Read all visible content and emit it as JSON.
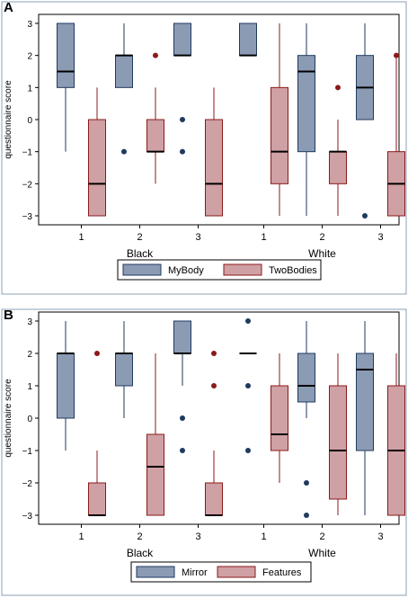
{
  "panel_letters": [
    "A",
    "B"
  ],
  "colors": {
    "box1_fill": "#8c9bb4",
    "box1_line": "#1f3a5f",
    "box2_fill": "#cfa0a4",
    "box2_line": "#8b1a1a",
    "frame": "#8aa0b4"
  },
  "chart_data": [
    {
      "type": "box",
      "ylabel": "questionnaire score",
      "ylim": [
        -3,
        3
      ],
      "yticks": [
        "3",
        "2",
        "1",
        "0",
        "−1",
        "−2",
        "−3"
      ],
      "group_labels": [
        "Black",
        "White"
      ],
      "categories": [
        "1",
        "2",
        "3",
        "1",
        "2",
        "3"
      ],
      "legend": [
        "MyBody",
        "TwoBodies"
      ],
      "legend_position": "bottom",
      "boxes": [
        {
          "cat": 0,
          "series": 0,
          "q1": 1,
          "med": 1.5,
          "q3": 3,
          "lo": -1,
          "hi": 3,
          "out": []
        },
        {
          "cat": 0,
          "series": 1,
          "q1": -3,
          "med": -2,
          "q3": 0,
          "lo": -3,
          "hi": 1,
          "out": []
        },
        {
          "cat": 1,
          "series": 0,
          "q1": 1,
          "med": 2,
          "q3": 2,
          "lo": 1,
          "hi": 3,
          "out": [
            -1
          ]
        },
        {
          "cat": 1,
          "series": 1,
          "q1": -1,
          "med": -1,
          "q3": 0,
          "lo": -2,
          "hi": 1,
          "out": [
            2
          ]
        },
        {
          "cat": 2,
          "series": 0,
          "q1": 2,
          "med": 2,
          "q3": 3,
          "lo": 2,
          "hi": 3,
          "out": [
            0,
            -1
          ]
        },
        {
          "cat": 2,
          "series": 1,
          "q1": -3,
          "med": -2,
          "q3": 0,
          "lo": -3,
          "hi": 1,
          "out": []
        },
        {
          "cat": 3,
          "series": 0,
          "q1": 2,
          "med": 2,
          "q3": 3,
          "lo": 2,
          "hi": 3,
          "out": []
        },
        {
          "cat": 3,
          "series": 1,
          "q1": -2,
          "med": -1,
          "q3": 1,
          "lo": -3,
          "hi": 3,
          "out": []
        },
        {
          "cat": 4,
          "series": 0,
          "q1": -1,
          "med": 1.5,
          "q3": 2,
          "lo": -3,
          "hi": 3,
          "out": []
        },
        {
          "cat": 4,
          "series": 1,
          "q1": -2,
          "med": -1,
          "q3": -1,
          "lo": -3,
          "hi": 0,
          "out": [
            1
          ]
        },
        {
          "cat": 5,
          "series": 0,
          "q1": 0,
          "med": 1,
          "q3": 2,
          "lo": 0,
          "hi": 3,
          "out": [
            -3
          ]
        },
        {
          "cat": 5,
          "series": 1,
          "q1": -3,
          "med": -2,
          "q3": -1,
          "lo": -3,
          "hi": 2,
          "out": [
            2
          ]
        }
      ]
    },
    {
      "type": "box",
      "ylabel": "questionnaire score",
      "ylim": [
        -3,
        3
      ],
      "yticks": [
        "3",
        "2",
        "1",
        "0",
        "−1",
        "−2",
        "−3"
      ],
      "group_labels": [
        "Black",
        "White"
      ],
      "categories": [
        "1",
        "2",
        "3",
        "1",
        "2",
        "3"
      ],
      "legend": [
        "Mirror",
        "Features"
      ],
      "legend_position": "bottom",
      "boxes": [
        {
          "cat": 0,
          "series": 0,
          "q1": 0,
          "med": 2,
          "q3": 2,
          "lo": -1,
          "hi": 3,
          "out": []
        },
        {
          "cat": 0,
          "series": 1,
          "q1": -3,
          "med": -3,
          "q3": -2,
          "lo": -3,
          "hi": -1,
          "out": [
            2
          ]
        },
        {
          "cat": 1,
          "series": 0,
          "q1": 1,
          "med": 2,
          "q3": 2,
          "lo": 0,
          "hi": 3,
          "out": []
        },
        {
          "cat": 1,
          "series": 1,
          "q1": -3,
          "med": -1.5,
          "q3": -0.5,
          "lo": -3,
          "hi": 2,
          "out": []
        },
        {
          "cat": 2,
          "series": 0,
          "q1": 2,
          "med": 2,
          "q3": 3,
          "lo": 1,
          "hi": 3,
          "out": [
            0,
            -1
          ]
        },
        {
          "cat": 2,
          "series": 1,
          "q1": -3,
          "med": -3,
          "q3": -2,
          "lo": -3,
          "hi": -1,
          "out": [
            2,
            1
          ]
        },
        {
          "cat": 3,
          "series": 0,
          "q1": 2,
          "med": 2,
          "q3": 2,
          "lo": 2,
          "hi": 2,
          "out": [
            3,
            1,
            -1
          ]
        },
        {
          "cat": 3,
          "series": 1,
          "q1": -1,
          "med": -0.5,
          "q3": 1,
          "lo": -2,
          "hi": 2,
          "out": []
        },
        {
          "cat": 4,
          "series": 0,
          "q1": 0.5,
          "med": 1,
          "q3": 2,
          "lo": 0,
          "hi": 3,
          "out": [
            -2,
            -3
          ]
        },
        {
          "cat": 4,
          "series": 1,
          "q1": -2.5,
          "med": -1,
          "q3": 1,
          "lo": -3,
          "hi": 2,
          "out": []
        },
        {
          "cat": 5,
          "series": 0,
          "q1": -1,
          "med": 1.5,
          "q3": 2,
          "lo": -3,
          "hi": 3,
          "out": []
        },
        {
          "cat": 5,
          "series": 1,
          "q1": -3,
          "med": -1,
          "q3": 1,
          "lo": -3,
          "hi": 2,
          "out": []
        }
      ]
    }
  ]
}
